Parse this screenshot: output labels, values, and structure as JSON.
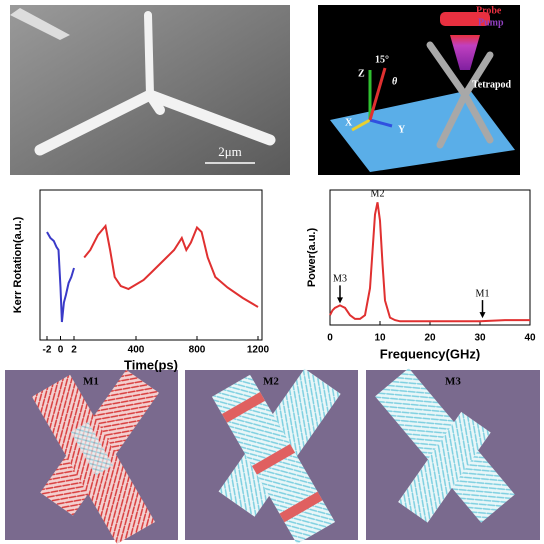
{
  "sem_image": {
    "scale_bar": "2μm"
  },
  "schematic": {
    "probe": "Probe",
    "pump": "Pump",
    "tetrapod": "Tetrapod",
    "axis_z": "Z",
    "axis_x": "X",
    "axis_y": "Y",
    "angle": "15°",
    "theta": "θ"
  },
  "chart_data": [
    {
      "type": "line",
      "xlabel": "Time(ps)",
      "ylabel": "Kerr Rotation(a.u.)",
      "x_segments": [
        {
          "xlim": [
            -2,
            2
          ],
          "xticks": [
            -2,
            0,
            2
          ]
        },
        {
          "xlim": [
            0,
            1200
          ],
          "xticks": [
            400,
            800,
            1200
          ]
        }
      ],
      "ylim": [
        0,
        1
      ],
      "series": [
        {
          "color": "#3a3ac8",
          "segment": 0,
          "x": [
            -2,
            -1.5,
            -1,
            -0.6,
            -0.3,
            0,
            0.2,
            0.5,
            0.8,
            1.2,
            1.6,
            2
          ],
          "values": [
            0.72,
            0.68,
            0.66,
            0.62,
            0.6,
            0.35,
            0.12,
            0.25,
            0.3,
            0.38,
            0.42,
            0.48
          ]
        },
        {
          "color": "#e03030",
          "segment": 1,
          "x": [
            60,
            100,
            150,
            200,
            230,
            260,
            300,
            350,
            400,
            450,
            500,
            550,
            600,
            650,
            700,
            730,
            760,
            800,
            830,
            870,
            920,
            1000,
            1100,
            1200
          ],
          "values": [
            0.55,
            0.6,
            0.7,
            0.76,
            0.6,
            0.42,
            0.36,
            0.34,
            0.37,
            0.4,
            0.45,
            0.5,
            0.55,
            0.6,
            0.68,
            0.6,
            0.65,
            0.75,
            0.72,
            0.55,
            0.42,
            0.35,
            0.28,
            0.22
          ]
        }
      ]
    },
    {
      "type": "line",
      "xlabel": "Frequency(GHz)",
      "ylabel": "Power(a.u.)",
      "xlim": [
        0,
        40
      ],
      "xticks": [
        0,
        10,
        20,
        30,
        40
      ],
      "ylim": [
        0,
        1.1
      ],
      "series": [
        {
          "color": "#e03030",
          "x": [
            0,
            0.5,
            1,
            1.5,
            2,
            2.5,
            3,
            4,
            5,
            6,
            7,
            8,
            8.5,
            9,
            9.5,
            10,
            10.5,
            11,
            12,
            13,
            14,
            16,
            20,
            25,
            30,
            35,
            40
          ],
          "values": [
            0.08,
            0.12,
            0.14,
            0.15,
            0.16,
            0.15,
            0.14,
            0.08,
            0.05,
            0.05,
            0.08,
            0.3,
            0.6,
            0.9,
            1.0,
            0.85,
            0.5,
            0.2,
            0.06,
            0.04,
            0.03,
            0.03,
            0.03,
            0.03,
            0.03,
            0.04,
            0.04
          ]
        }
      ],
      "annotations": [
        {
          "text": "M3",
          "x": 2,
          "y": 0.16
        },
        {
          "text": "M2",
          "x": 9.5,
          "y": 1.0
        },
        {
          "text": "M1",
          "x": 30.5,
          "y": 0.04
        }
      ]
    }
  ],
  "mode_images": [
    {
      "label": "M1"
    },
    {
      "label": "M2"
    },
    {
      "label": "M3"
    }
  ]
}
